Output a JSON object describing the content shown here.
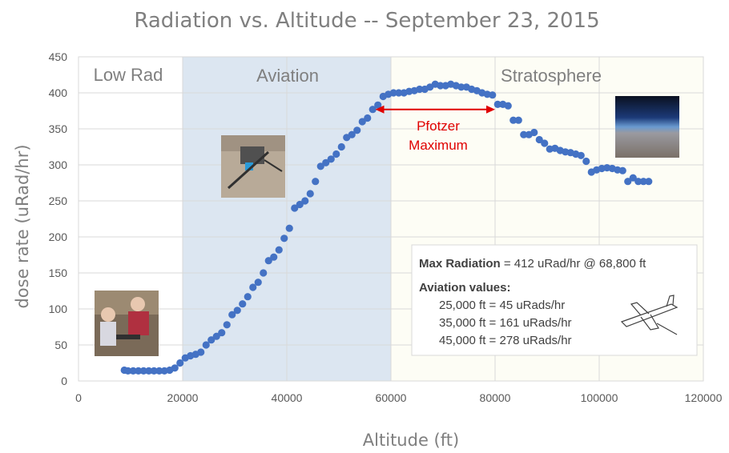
{
  "chart_data": {
    "type": "scatter",
    "title": "Radiation vs. Altitude -- September 23, 2015",
    "xlabel": "Altitude (ft)",
    "ylabel": "dose rate (uRad/hr)",
    "xlim": [
      0,
      120000
    ],
    "ylim": [
      0,
      450
    ],
    "x_ticks": [
      0,
      20000,
      40000,
      60000,
      80000,
      100000,
      120000
    ],
    "y_ticks": [
      0,
      50,
      100,
      150,
      200,
      250,
      300,
      350,
      400,
      450
    ],
    "grid": true,
    "marker_color": "#4472c4",
    "regions": [
      {
        "label": "Low Rad",
        "x_start": 0,
        "x_end": 20000,
        "color": "#ffffff"
      },
      {
        "label": "Aviation",
        "x_start": 20000,
        "x_end": 60000,
        "color": "#dce6f1"
      },
      {
        "label": "Stratosphere",
        "x_start": 60000,
        "x_end": 120000,
        "color": "#fdfdf5"
      }
    ],
    "annotation": {
      "line1": "Pfotzer",
      "line2": "Maximum",
      "x_start": 57000,
      "x_end": 80000,
      "y": 377,
      "color": "#e00000"
    },
    "info_box": {
      "max_label": "Max Radiation",
      "max_value": " = 412 uRad/hr @ 68,800 ft",
      "aviation_heading": "Aviation values:",
      "lines": [
        "25,000 ft = 45 uRads/hr",
        "35,000 ft = 161 uRads/hr",
        "45,000 ft = 278 uRads/hr"
      ]
    },
    "x": [
      8800,
      9500,
      10500,
      11500,
      12500,
      13500,
      14500,
      15500,
      16500,
      17500,
      18500,
      19500,
      20500,
      21500,
      22500,
      23500,
      24500,
      25500,
      26500,
      27500,
      28500,
      29500,
      30500,
      31500,
      32500,
      33500,
      34500,
      35500,
      36500,
      37500,
      38500,
      39500,
      40500,
      41500,
      42500,
      43500,
      44500,
      45500,
      46500,
      47500,
      48500,
      49500,
      50500,
      51500,
      52500,
      53500,
      54500,
      55500,
      56500,
      57500,
      58500,
      59500,
      60500,
      61500,
      62500,
      63500,
      64500,
      65500,
      66500,
      67500,
      68500,
      69500,
      70500,
      71500,
      72500,
      73500,
      74500,
      75500,
      76500,
      77500,
      78500,
      79500,
      80500,
      81500,
      82500,
      83500,
      84500,
      85500,
      86500,
      87500,
      88500,
      89500,
      90500,
      91500,
      92500,
      93500,
      94500,
      95500,
      96500,
      97500,
      98500,
      99500,
      100500,
      101500,
      102500,
      103500,
      104500,
      105500,
      106500,
      107500,
      108500,
      109500
    ],
    "y": [
      15,
      14,
      14,
      14,
      14,
      14,
      14,
      14,
      14,
      15,
      18,
      25,
      32,
      35,
      37,
      40,
      50,
      57,
      62,
      67,
      78,
      92,
      98,
      107,
      117,
      130,
      137,
      150,
      167,
      172,
      182,
      198,
      212,
      240,
      245,
      250,
      260,
      277,
      298,
      303,
      308,
      315,
      325,
      338,
      342,
      348,
      360,
      365,
      377,
      383,
      395,
      398,
      400,
      400,
      400,
      402,
      403,
      405,
      405,
      408,
      412,
      410,
      410,
      412,
      410,
      408,
      408,
      405,
      403,
      400,
      398,
      397,
      384,
      384,
      382,
      362,
      362,
      342,
      342,
      345,
      335,
      330,
      322,
      323,
      320,
      318,
      317,
      315,
      313,
      305,
      290,
      293,
      295,
      296,
      295,
      293,
      292,
      277,
      282,
      277,
      277,
      277
    ]
  }
}
